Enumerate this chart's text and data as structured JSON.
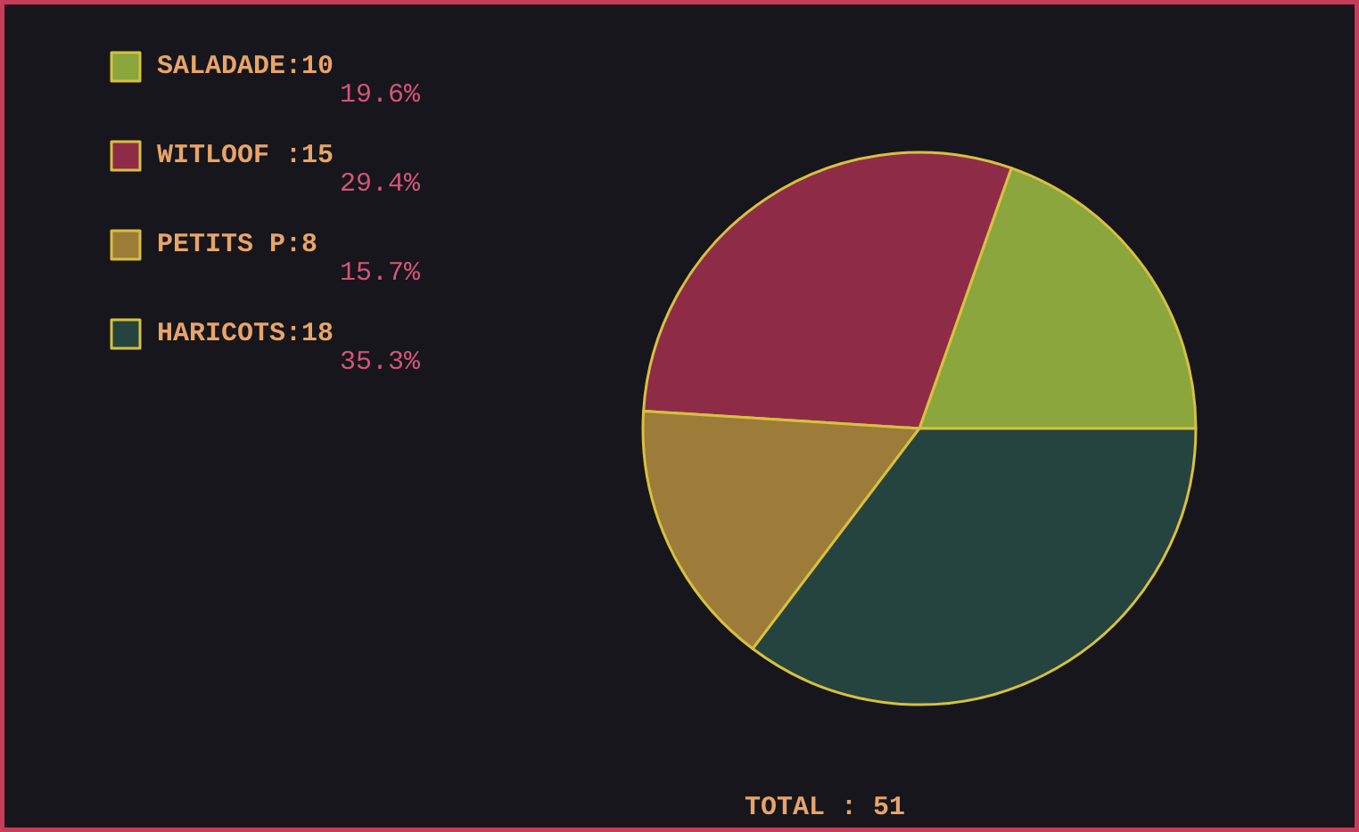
{
  "chart_data": {
    "type": "pie",
    "categories": [
      "SALADADE:10",
      "WITLOOF :15",
      "PETITS P:8",
      "HARICOTS:18"
    ],
    "values": [
      19.6,
      29.4,
      15.7,
      35.3
    ],
    "colors": [
      "#8aa63c",
      "#8e2c48",
      "#9c7c38",
      "#26443f"
    ],
    "value_labels": [
      "19.6%",
      "29.4%",
      "15.7%",
      "35.3%"
    ],
    "legend": "top left",
    "annotations": [
      "TOTAL : 51"
    ]
  }
}
